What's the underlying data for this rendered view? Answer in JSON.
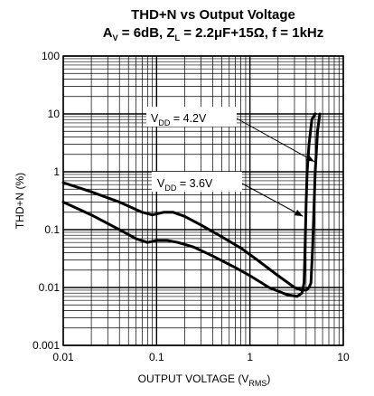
{
  "chart_data": {
    "type": "line",
    "title": "THD+N vs Output Voltage",
    "subtitle_parts": {
      "a": "A",
      "a_sub": "V",
      "a_val": " = 6dB, Z",
      "z_sub": "L",
      "z_val": " = 2.2μF+15Ω, f = 1kHz"
    },
    "ylabel": "THD+N (%)",
    "xlabel_parts": {
      "main": "OUTPUT VOLTAGE (V",
      "sub": "RMS",
      "close": ")"
    },
    "x_scale": "log",
    "y_scale": "log",
    "xlim": [
      0.01,
      10
    ],
    "ylim": [
      0.001,
      100
    ],
    "x_ticks": [
      {
        "v": 0.01,
        "label": "0.01"
      },
      {
        "v": 0.1,
        "label": "0.1"
      },
      {
        "v": 1,
        "label": "1"
      },
      {
        "v": 10,
        "label": "10"
      }
    ],
    "y_ticks": [
      {
        "v": 0.001,
        "label": "0.001"
      },
      {
        "v": 0.01,
        "label": "0.01"
      },
      {
        "v": 0.1,
        "label": "0.1"
      },
      {
        "v": 1,
        "label": "1"
      },
      {
        "v": 10,
        "label": "10"
      },
      {
        "v": 100,
        "label": "100"
      }
    ],
    "grid": true,
    "series": [
      {
        "x": [
          0.01,
          0.02,
          0.04,
          0.07,
          0.09,
          0.12,
          0.15,
          0.2,
          0.3,
          0.5,
          0.8,
          1.2,
          2,
          3,
          3.6,
          4,
          4.3,
          4.5,
          4.7,
          5.0,
          5.3,
          5.6
        ],
        "y": [
          0.65,
          0.45,
          0.3,
          0.2,
          0.18,
          0.2,
          0.2,
          0.17,
          0.12,
          0.075,
          0.048,
          0.03,
          0.016,
          0.01,
          0.009,
          0.009,
          0.01,
          0.012,
          0.05,
          1.0,
          5.0,
          10
        ]
      },
      {
        "x": [
          0.01,
          0.02,
          0.04,
          0.06,
          0.08,
          0.1,
          0.13,
          0.17,
          0.25,
          0.4,
          0.7,
          1,
          1.6,
          2.5,
          3.2,
          3.6,
          3.8,
          3.9,
          4.0,
          4.1,
          4.3,
          4.6,
          5.0
        ],
        "y": [
          0.3,
          0.18,
          0.1,
          0.07,
          0.06,
          0.065,
          0.065,
          0.06,
          0.05,
          0.035,
          0.022,
          0.016,
          0.01,
          0.0075,
          0.007,
          0.008,
          0.012,
          0.05,
          0.3,
          1.0,
          3.0,
          8.0,
          10
        ]
      }
    ],
    "annotations": [
      {
        "prefix": "V",
        "sub": "DD",
        "rest": " = 4.2V",
        "target_x": 4.9,
        "target_y": 1.5
      },
      {
        "prefix": "V",
        "sub": "DD",
        "rest": " = 3.6V",
        "target_x": 3.7,
        "target_y": 0.17
      }
    ]
  }
}
